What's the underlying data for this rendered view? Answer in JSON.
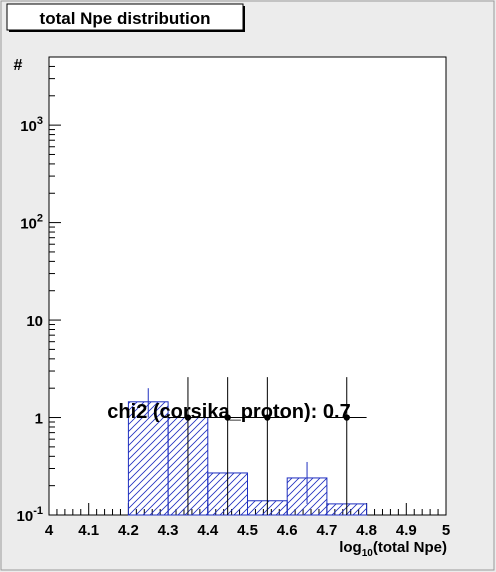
{
  "chart_data": {
    "type": "bar",
    "title": "total Npe distribution",
    "ylabel": "#",
    "xlabel_parts": {
      "prefix": "log",
      "sub": "10",
      "suffix": "(total Npe)"
    },
    "annotation": "chi2 (corsika_proton): 0.7",
    "x_scale": "linear",
    "y_scale": "log",
    "xlim": [
      4,
      5
    ],
    "ylim": [
      0.1,
      5000
    ],
    "grid": false,
    "legend": "none",
    "x_ticks": [
      {
        "value": 4.0,
        "label": "4"
      },
      {
        "value": 4.1,
        "label": "4.1"
      },
      {
        "value": 4.2,
        "label": "4.2"
      },
      {
        "value": 4.3,
        "label": "4.3"
      },
      {
        "value": 4.4,
        "label": "4.4"
      },
      {
        "value": 4.5,
        "label": "4.5"
      },
      {
        "value": 4.6,
        "label": "4.6"
      },
      {
        "value": 4.7,
        "label": "4.7"
      },
      {
        "value": 4.8,
        "label": "4.8"
      },
      {
        "value": 4.9,
        "label": "4.9"
      },
      {
        "value": 5.0,
        "label": "5"
      }
    ],
    "y_ticks": [
      {
        "value": 0.1,
        "base": "10",
        "exp": "-1"
      },
      {
        "value": 1,
        "base": "1",
        "exp": ""
      },
      {
        "value": 10,
        "base": "10",
        "exp": ""
      },
      {
        "value": 100,
        "base": "10",
        "exp": "2"
      },
      {
        "value": 1000,
        "base": "10",
        "exp": "3"
      }
    ],
    "histogram": {
      "color": "#1f2fbf",
      "fill": "hatched",
      "bins": [
        {
          "x0": 4.2,
          "x1": 4.3,
          "value": 1.45,
          "err_low": 1.0,
          "err_high": 2.0
        },
        {
          "x0": 4.3,
          "x1": 4.4,
          "value": 1.0
        },
        {
          "x0": 4.4,
          "x1": 4.5,
          "value": 0.27
        },
        {
          "x0": 4.5,
          "x1": 4.6,
          "value": 0.14
        },
        {
          "x0": 4.6,
          "x1": 4.7,
          "value": 0.24,
          "err_low": 0.13,
          "err_high": 0.35
        },
        {
          "x0": 4.7,
          "x1": 4.8,
          "value": 0.13
        }
      ]
    },
    "data_points": {
      "color": "#000000",
      "points": [
        {
          "x": 4.35,
          "y": 1.0,
          "xerr": 0.05,
          "y_low": 0.1,
          "y_high": 2.6
        },
        {
          "x": 4.45,
          "y": 1.0,
          "xerr": 0.05,
          "y_low": 0.1,
          "y_high": 2.6
        },
        {
          "x": 4.55,
          "y": 1.0,
          "xerr": 0.05,
          "y_low": 0.1,
          "y_high": 2.6
        },
        {
          "x": 4.75,
          "y": 1.0,
          "xerr": 0.05,
          "y_low": 0.1,
          "y_high": 2.6
        }
      ]
    }
  }
}
